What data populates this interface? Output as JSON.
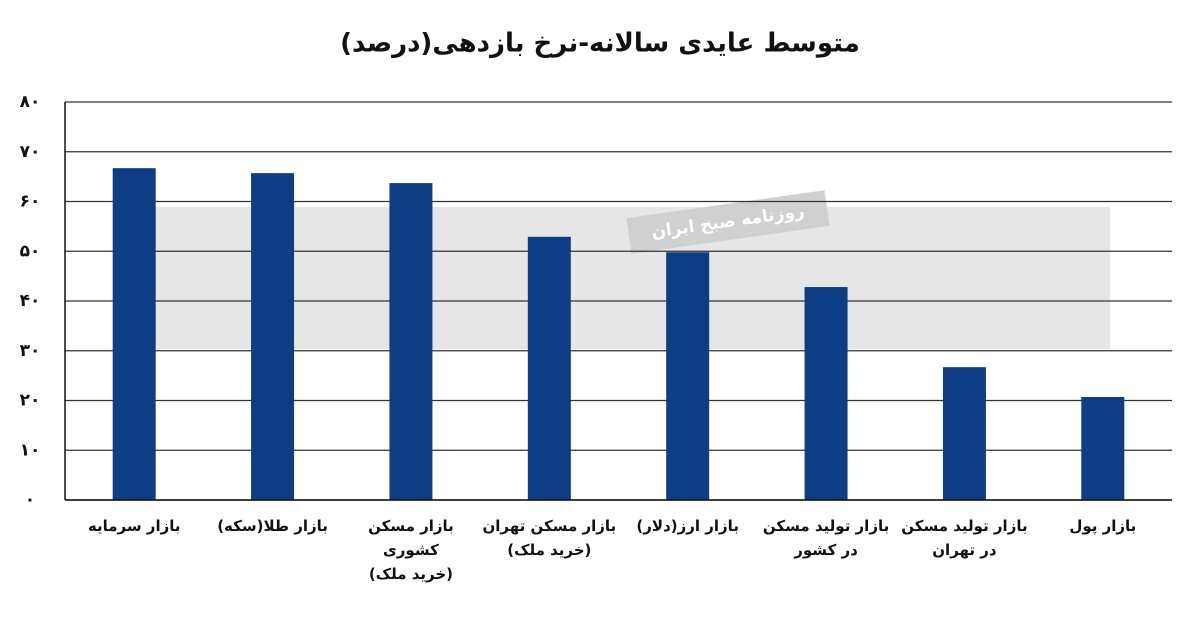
{
  "chart_data": {
    "type": "bar",
    "title": "متوسط عایدی سالانه-نرخ بازدهی(درصد)",
    "watermark": "روزنامه صبح ایران",
    "categories": [
      "بازار سرمایه",
      "بازار طلا(سکه)",
      "بازار مسکن\nکشوری\n(خرید ملک)",
      "بازار مسکن تهران\n(خرید ملک)",
      "بازار ارز(دلار)",
      "بازار تولید مسکن\nدر کشور",
      "بازار تولید مسکن\nدر تهران",
      "بازار پول"
    ],
    "values": [
      66.7,
      65.7,
      63.7,
      52.9,
      49.8,
      42.8,
      26.7,
      20.7
    ],
    "color": "#0d3d82",
    "ylim": [
      0,
      80
    ],
    "yticks": [
      {
        "value": 0,
        "label": "۰"
      },
      {
        "value": 10,
        "label": "۱۰"
      },
      {
        "value": 20,
        "label": "۲۰"
      },
      {
        "value": 30,
        "label": "۳۰"
      },
      {
        "value": 40,
        "label": "۴۰"
      },
      {
        "value": 50,
        "label": "۵۰"
      },
      {
        "value": 60,
        "label": "۶۰"
      },
      {
        "value": 70,
        "label": "۷۰"
      },
      {
        "value": 80,
        "label": "۸۰"
      }
    ],
    "grid": true
  }
}
